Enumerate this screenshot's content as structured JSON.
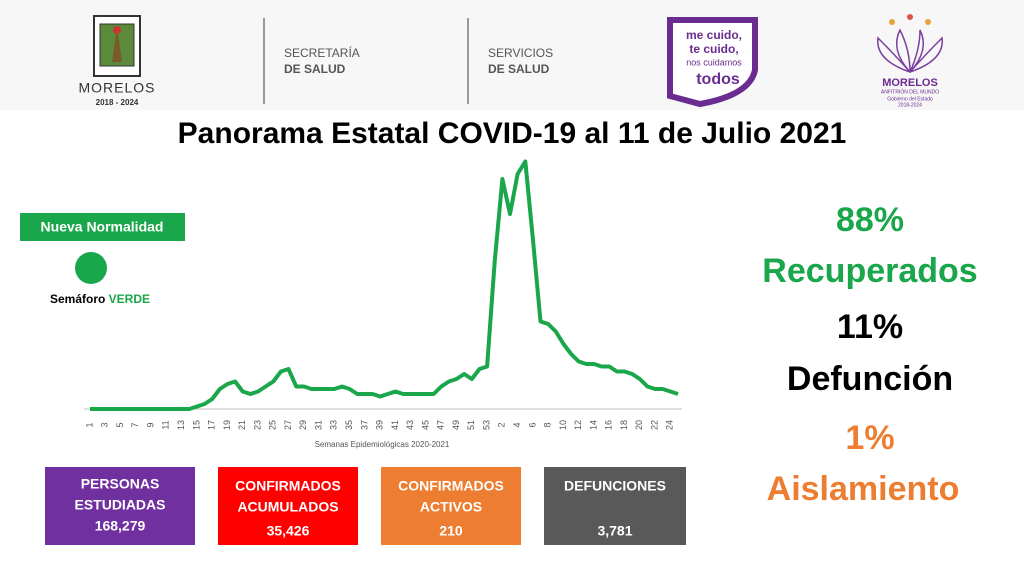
{
  "header": {
    "morelos_name": "MORELOS",
    "morelos_years": "2018 - 2024",
    "secretaria_line1": "SECRETARÍA",
    "secretaria_line2": "DE SALUD",
    "servicios_line1": "SERVICIOS",
    "servicios_line2": "DE SALUD",
    "slogan_line1": "me cuido,",
    "slogan_line2": "te cuido,",
    "slogan_line3": "nos cuidamos",
    "slogan_line4": "todos",
    "gov_name": "MORELOS",
    "gov_tagline": "ANFITRIÓN DEL MUNDO",
    "gov_line": "Gobierno del Estado",
    "gov_years": "2018-2024"
  },
  "title": "Panorama Estatal COVID-19 al 11 de Julio 2021",
  "semaforo": {
    "badge": "Nueva Normalidad",
    "label": "Semáforo",
    "status": "VERDE"
  },
  "chart_data": {
    "type": "line",
    "x_label": "Semanas Epidemiológicas 2020-2021",
    "color": "#1aa64a",
    "ylim": [
      0,
      100
    ],
    "categories": [
      "1",
      null,
      "3",
      null,
      "5",
      null,
      "7",
      null,
      "9",
      null,
      "11",
      null,
      "13",
      null,
      "15",
      null,
      "17",
      null,
      "19",
      null,
      "21",
      null,
      "23",
      null,
      "25",
      null,
      "27",
      null,
      "29",
      null,
      "31",
      null,
      "33",
      null,
      "35",
      null,
      "37",
      null,
      "39",
      null,
      "41",
      null,
      "43",
      null,
      "45",
      null,
      "47",
      null,
      "49",
      null,
      "51",
      null,
      "53",
      null,
      "2",
      null,
      "4",
      null,
      "6",
      null,
      "8",
      null,
      "10",
      null,
      "12",
      null,
      "14",
      null,
      "16",
      null,
      "18",
      null,
      "20",
      null,
      "22",
      null,
      "24",
      null
    ],
    "values": [
      0,
      0,
      0,
      0,
      0,
      0,
      0,
      0,
      0,
      0,
      0,
      0,
      0,
      0,
      1,
      2,
      4,
      8,
      10,
      11,
      7,
      6,
      7,
      9,
      11,
      15,
      16,
      9,
      9,
      8,
      8,
      8,
      8,
      9,
      8,
      6,
      6,
      6,
      5,
      6,
      7,
      6,
      6,
      6,
      6,
      6,
      9,
      11,
      12,
      14,
      12,
      16,
      17,
      59,
      92,
      78,
      94,
      99,
      68,
      35,
      34,
      31,
      26,
      22,
      19,
      18,
      18,
      17,
      17,
      15,
      15,
      14,
      12,
      9,
      8,
      8,
      7,
      6
    ]
  },
  "stats": [
    {
      "value": "88%",
      "label": "Recuperados"
    },
    {
      "value": "11%",
      "label": "Defunción"
    },
    {
      "value": "1%",
      "label": "Aislamiento"
    }
  ],
  "boxes": [
    {
      "line1": "PERSONAS",
      "line2": "ESTUDIADAS",
      "value": "168,279"
    },
    {
      "line1": "CONFIRMADOS",
      "line2": "ACUMULADOS",
      "value": "35,426"
    },
    {
      "line1": "CONFIRMADOS",
      "line2": "ACTIVOS",
      "value": "210"
    },
    {
      "line1": "DEFUNCIONES",
      "value": "3,781"
    }
  ]
}
